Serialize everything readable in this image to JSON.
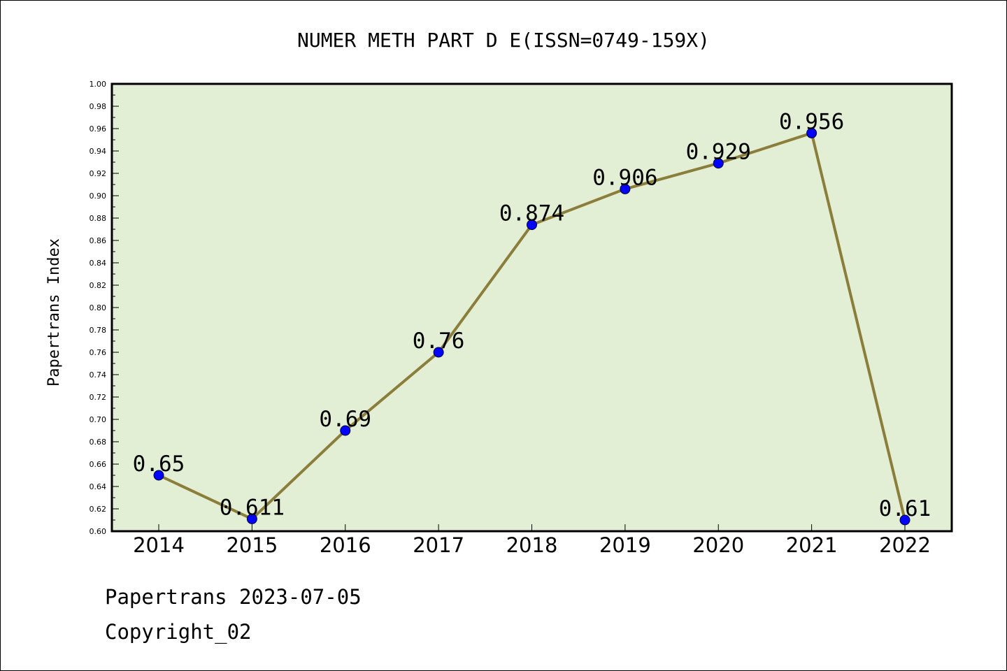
{
  "chart_data": {
    "type": "line",
    "title": "NUMER METH PART D E(ISSN=0749-159X)",
    "ylabel": "Papertrans Index",
    "xlabel": "",
    "categories": [
      "2014",
      "2015",
      "2016",
      "2017",
      "2018",
      "2019",
      "2020",
      "2021",
      "2022"
    ],
    "values": [
      0.65,
      0.611,
      0.69,
      0.76,
      0.874,
      0.906,
      0.929,
      0.956,
      0.61
    ],
    "value_labels": [
      "0.65",
      "0.611",
      "0.69",
      "0.76",
      "0.874",
      "0.906",
      "0.929",
      "0.956",
      "0.61"
    ],
    "ylim": [
      0.6,
      1.0
    ],
    "y_ticks": [
      "0.60",
      "0.62",
      "0.64",
      "0.66",
      "0.68",
      "0.70",
      "0.72",
      "0.74",
      "0.76",
      "0.78",
      "0.80",
      "0.82",
      "0.84",
      "0.86",
      "0.88",
      "0.90",
      "0.92",
      "0.94",
      "0.96",
      "0.98",
      "1.00"
    ],
    "grid": false,
    "colors": {
      "plot_background": "#e2efd4",
      "line": "#8b7d3a",
      "marker": "#0000ff",
      "axis": "#000000"
    }
  },
  "footer": {
    "line1": "Papertrans 2023-07-05",
    "line2": "Copyright_02"
  }
}
